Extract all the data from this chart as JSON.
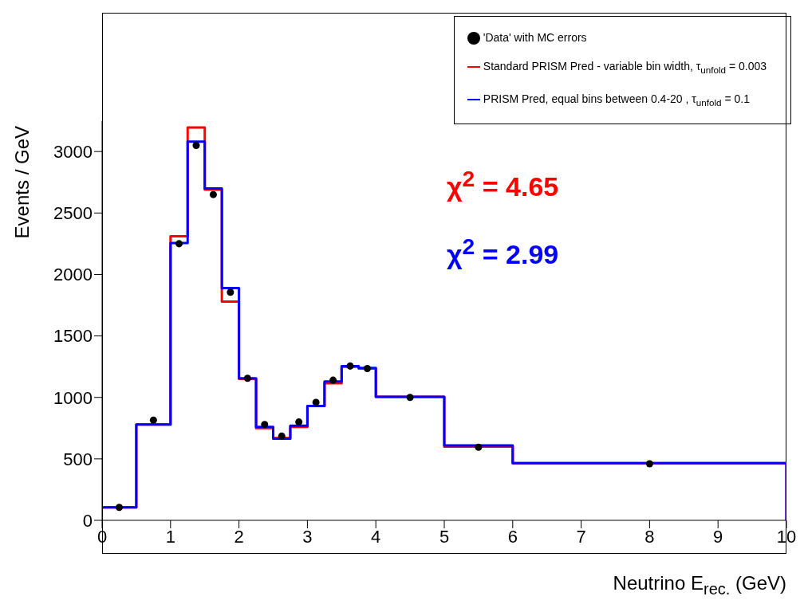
{
  "chart_data": {
    "type": "histogram",
    "xlabel": "Neutrino E$_{rec.}$ (GeV)",
    "ylabel": "Events / GeV",
    "bins": [
      0,
      0.5,
      1,
      1.25,
      1.5,
      1.75,
      2,
      2.25,
      2.5,
      2.75,
      3,
      3.25,
      3.5,
      3.75,
      4,
      5,
      6,
      10
    ],
    "series": [
      {
        "name": "'Data' with MC errors",
        "type": "scatter",
        "color": "#000000",
        "marker": "circle",
        "x": [
          0.25,
          0.75,
          1.125,
          1.375,
          1.625,
          1.875,
          2.125,
          2.375,
          2.625,
          2.875,
          3.125,
          3.375,
          3.625,
          3.875,
          4.5,
          5.5,
          8
        ],
        "values": [
          105,
          815,
          2250,
          3050,
          2650,
          1855,
          1155,
          780,
          685,
          800,
          960,
          1140,
          1255,
          1235,
          1000,
          595,
          460
        ]
      },
      {
        "name": "Standard PRISM Pred - variable bin width, τ$_{unfold}$ = 0.003",
        "color": "#ff0000",
        "values": [
          105,
          780,
          2310,
          3195,
          2690,
          1780,
          1150,
          750,
          670,
          760,
          930,
          1115,
          1250,
          1235,
          1005,
          600,
          465
        ]
      },
      {
        "name": "PRISM Pred, equal bins between 0.4-20 , τ$_{unfold}$ = 0.1",
        "color": "#0000ff",
        "values": [
          105,
          780,
          2255,
          3080,
          2700,
          1890,
          1155,
          760,
          665,
          770,
          930,
          1130,
          1255,
          1240,
          1005,
          610,
          465
        ]
      }
    ],
    "annotations": [
      "χ$^{2}$ = 4.65",
      "χ$^{2}$ = 2.99"
    ],
    "xlim": [
      0,
      10
    ],
    "xticks": [
      0,
      1,
      2,
      3,
      4,
      5,
      6,
      7,
      8,
      9,
      10
    ],
    "ylim": [
      0,
      3250
    ],
    "yticks": [
      0,
      500,
      1000,
      1500,
      2000,
      2500,
      3000
    ],
    "grid": false,
    "legend": "top right"
  }
}
